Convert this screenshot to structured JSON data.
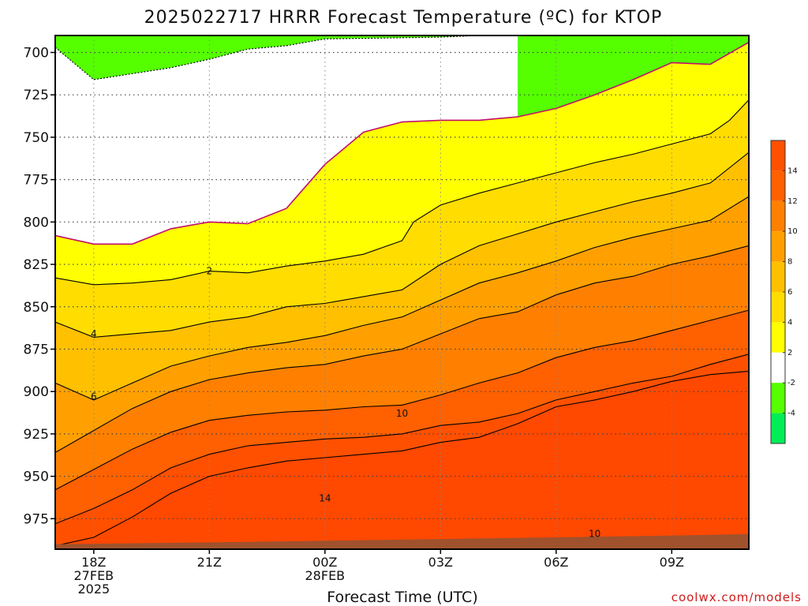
{
  "chart_data": {
    "type": "heatmap",
    "title": "2025022717 HRRR Forecast Temperature (ºC) for KTOP",
    "xlabel": "Forecast Time (UTC)",
    "ylabel": "",
    "y_ticks": [
      "700",
      "725",
      "750",
      "775",
      "800",
      "825",
      "850",
      "875",
      "900",
      "925",
      "950",
      "975"
    ],
    "x_ticks": [
      {
        "label": "18Z",
        "sub1": "27FEB",
        "sub2": "2025"
      },
      {
        "label": "21Z",
        "sub1": "",
        "sub2": ""
      },
      {
        "label": "00Z",
        "sub1": "28FEB",
        "sub2": ""
      },
      {
        "label": "03Z",
        "sub1": "",
        "sub2": ""
      },
      {
        "label": "06Z",
        "sub1": "",
        "sub2": ""
      },
      {
        "label": "09Z",
        "sub1": "",
        "sub2": ""
      }
    ],
    "x_range_hours": [
      -1,
      17
    ],
    "y_range_hpa": [
      690,
      993
    ],
    "grid": true,
    "colorbar": {
      "levels": [
        "-4",
        "-2",
        "2",
        "4",
        "6",
        "8",
        "10",
        "12",
        "14"
      ],
      "colors": [
        "#00ee55",
        "#55ff00",
        "#ffffff",
        "#ffff00",
        "#ffdd00",
        "#ffc000",
        "#ffa000",
        "#ff8000",
        "#ff6000",
        "#ff5000"
      ]
    },
    "contour_labels": [
      {
        "text": "2",
        "hour": 3.0,
        "hpa": 829
      },
      {
        "text": "4",
        "hour": 0.0,
        "hpa": 866
      },
      {
        "text": "6",
        "hour": 0.0,
        "hpa": 903
      },
      {
        "text": "10",
        "hour": 8.0,
        "hpa": 913
      },
      {
        "text": "14",
        "hour": 6.0,
        "hpa": 963
      },
      {
        "text": "10",
        "hour": 13.0,
        "hpa": 984
      }
    ],
    "isotherms": [
      {
        "temp": -2,
        "points": [
          [
            -1,
            697
          ],
          [
            0,
            716
          ],
          [
            2,
            709
          ],
          [
            3,
            704
          ],
          [
            4,
            698
          ],
          [
            5,
            696
          ],
          [
            6,
            692
          ],
          [
            9,
            691
          ],
          [
            11,
            689
          ]
        ]
      },
      {
        "temp": 0,
        "points": [
          [
            -1,
            808
          ],
          [
            0,
            813
          ],
          [
            1,
            813
          ],
          [
            2,
            804
          ],
          [
            3,
            800
          ],
          [
            4,
            801
          ],
          [
            5,
            792
          ],
          [
            6,
            766
          ],
          [
            7,
            747
          ],
          [
            8,
            741
          ],
          [
            9,
            740
          ],
          [
            10,
            740
          ],
          [
            11,
            738
          ],
          [
            12,
            733
          ],
          [
            13,
            725
          ],
          [
            14,
            716
          ],
          [
            15,
            706
          ],
          [
            16,
            707
          ],
          [
            17,
            694
          ]
        ]
      },
      {
        "temp": 2,
        "points": [
          [
            -1,
            833
          ],
          [
            0,
            837
          ],
          [
            1,
            836
          ],
          [
            2,
            834
          ],
          [
            3,
            829
          ],
          [
            4,
            830
          ],
          [
            5,
            826
          ],
          [
            6,
            823
          ],
          [
            7,
            819
          ],
          [
            8,
            811
          ],
          [
            8.3,
            800
          ],
          [
            9,
            790
          ],
          [
            10,
            783
          ],
          [
            11,
            777
          ],
          [
            12,
            771
          ],
          [
            13,
            765
          ],
          [
            14,
            760
          ],
          [
            15,
            754
          ],
          [
            16,
            748
          ],
          [
            16.5,
            740
          ],
          [
            17,
            728
          ]
        ]
      },
      {
        "temp": 4,
        "points": [
          [
            -1,
            859
          ],
          [
            0,
            868
          ],
          [
            1,
            866
          ],
          [
            2,
            864
          ],
          [
            3,
            859
          ],
          [
            4,
            856
          ],
          [
            5,
            850
          ],
          [
            6,
            848
          ],
          [
            7,
            844
          ],
          [
            8,
            840
          ],
          [
            9,
            825
          ],
          [
            10,
            814
          ],
          [
            11,
            807
          ],
          [
            12,
            800
          ],
          [
            13,
            794
          ],
          [
            14,
            788
          ],
          [
            15,
            783
          ],
          [
            16,
            777
          ],
          [
            17,
            759
          ]
        ]
      },
      {
        "temp": 6,
        "points": [
          [
            -1,
            895
          ],
          [
            0,
            905
          ],
          [
            1,
            895
          ],
          [
            2,
            885
          ],
          [
            3,
            879
          ],
          [
            4,
            874
          ],
          [
            5,
            871
          ],
          [
            6,
            867
          ],
          [
            7,
            861
          ],
          [
            8,
            856
          ],
          [
            9,
            846
          ],
          [
            10,
            836
          ],
          [
            11,
            830
          ],
          [
            12,
            823
          ],
          [
            13,
            815
          ],
          [
            14,
            809
          ],
          [
            15,
            804
          ],
          [
            16,
            799
          ],
          [
            17,
            785
          ]
        ]
      },
      {
        "temp": 8,
        "points": [
          [
            -1,
            936
          ],
          [
            0,
            923
          ],
          [
            1,
            910
          ],
          [
            2,
            900
          ],
          [
            3,
            893
          ],
          [
            4,
            889
          ],
          [
            5,
            886
          ],
          [
            6,
            884
          ],
          [
            7,
            879
          ],
          [
            8,
            875
          ],
          [
            9,
            866
          ],
          [
            10,
            857
          ],
          [
            11,
            853
          ],
          [
            12,
            843
          ],
          [
            13,
            836
          ],
          [
            14,
            832
          ],
          [
            15,
            825
          ],
          [
            16,
            820
          ],
          [
            17,
            814
          ]
        ]
      },
      {
        "temp": 10,
        "points": [
          [
            -1,
            958
          ],
          [
            0,
            946
          ],
          [
            1,
            934
          ],
          [
            2,
            924
          ],
          [
            3,
            917
          ],
          [
            4,
            914
          ],
          [
            5,
            912
          ],
          [
            6,
            911
          ],
          [
            7,
            909
          ],
          [
            8,
            908
          ],
          [
            9,
            902
          ],
          [
            10,
            895
          ],
          [
            11,
            889
          ],
          [
            12,
            880
          ],
          [
            13,
            874
          ],
          [
            14,
            870
          ],
          [
            15,
            864
          ],
          [
            16,
            858
          ],
          [
            17,
            852
          ]
        ]
      },
      {
        "temp": 12,
        "points": [
          [
            -1,
            978
          ],
          [
            0,
            969
          ],
          [
            1,
            958
          ],
          [
            2,
            945
          ],
          [
            3,
            937
          ],
          [
            4,
            932
          ],
          [
            5,
            930
          ],
          [
            6,
            928
          ],
          [
            7,
            927
          ],
          [
            8,
            925
          ],
          [
            9,
            920
          ],
          [
            10,
            918
          ],
          [
            11,
            913
          ],
          [
            12,
            905
          ],
          [
            13,
            900
          ],
          [
            14,
            895
          ],
          [
            15,
            891
          ],
          [
            16,
            884
          ],
          [
            17,
            878
          ]
        ]
      },
      {
        "temp": 14,
        "points": [
          [
            -1,
            991
          ],
          [
            0,
            986
          ],
          [
            1,
            974
          ],
          [
            2,
            960
          ],
          [
            3,
            950
          ],
          [
            4,
            945
          ],
          [
            5,
            941
          ],
          [
            6,
            939
          ],
          [
            7,
            937
          ],
          [
            8,
            935
          ],
          [
            9,
            930
          ],
          [
            10,
            927
          ],
          [
            11,
            919
          ],
          [
            12,
            909
          ],
          [
            13,
            905
          ],
          [
            14,
            900
          ],
          [
            15,
            894
          ],
          [
            16,
            890
          ],
          [
            17,
            888
          ]
        ]
      }
    ]
  },
  "credit": "coolwx.com/models"
}
